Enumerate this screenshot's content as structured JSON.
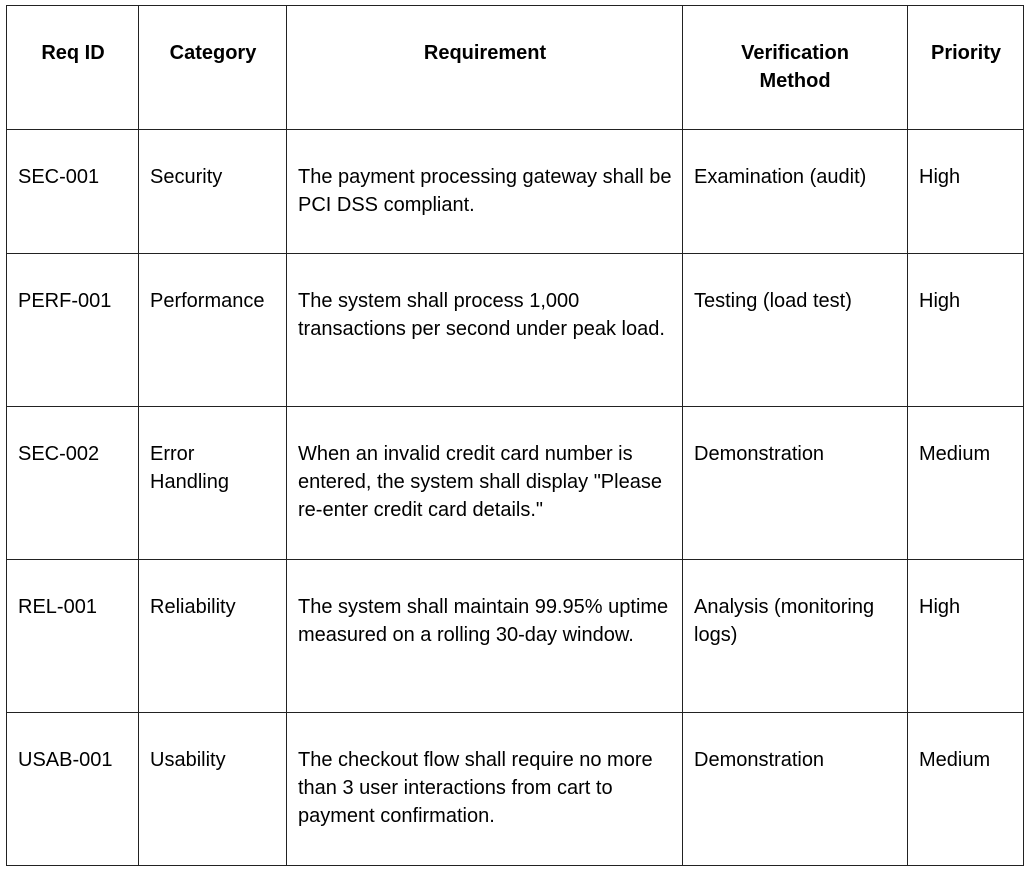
{
  "table": {
    "headers": [
      "Req ID",
      "Category",
      "Requirement",
      "Verification Method",
      "Priority"
    ],
    "rows": [
      [
        "SEC-001",
        "Security",
        "The payment processing gateway shall be PCI DSS compliant.",
        "Examination (audit)",
        "High"
      ],
      [
        "PERF-001",
        "Performance",
        "The system shall process 1,000 transactions per second under peak load.",
        "Testing (load test)",
        "High"
      ],
      [
        "SEC-002",
        "Error Handling",
        "When an invalid credit card number is entered, the system shall display \"Please re-enter credit card details.\"",
        "Demonstration",
        "Medium"
      ],
      [
        "REL-001",
        "Reliability",
        "The system shall maintain 99.95% uptime measured on a rolling 30-day window.",
        "Analysis (monitoring logs)",
        "High"
      ],
      [
        "USAB-001",
        "Usability",
        "The checkout flow shall require no more than 3 user interactions from cart to payment confirmation.",
        "Demonstration",
        "Medium"
      ]
    ]
  }
}
